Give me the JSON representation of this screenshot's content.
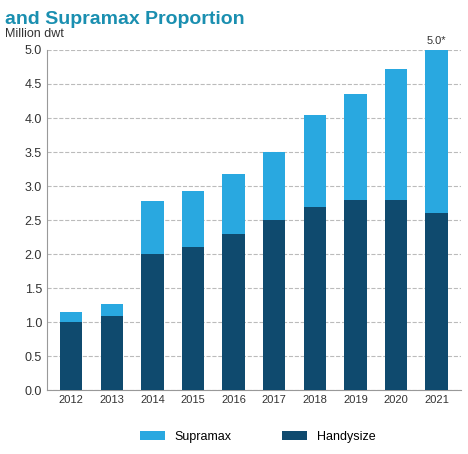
{
  "chart_data": {
    "type": "bar",
    "stacked": true,
    "title": "and Supramax Proportion",
    "y_label": "Million dwt",
    "categories": [
      "2012",
      "2013",
      "2014",
      "2015",
      "2016",
      "2017",
      "2018",
      "2019",
      "2020",
      "2021"
    ],
    "series": [
      {
        "name": "Handysize",
        "color": "#0f4a6e",
        "values": [
          1.0,
          1.1,
          2.0,
          2.1,
          2.3,
          2.5,
          2.7,
          2.8,
          2.8,
          2.6
        ]
      },
      {
        "name": "Supramax",
        "color": "#29a8e0",
        "values": [
          0.15,
          0.17,
          0.78,
          0.83,
          0.88,
          1.0,
          1.35,
          1.55,
          1.92,
          2.4
        ]
      }
    ],
    "ylim": [
      0.0,
      5.0
    ],
    "yticks": [
      0.0,
      0.5,
      1.0,
      1.5,
      2.0,
      2.5,
      3.0,
      3.5,
      4.0,
      4.5,
      5.0
    ],
    "grid": true,
    "legend": "lower center",
    "annotations": [
      {
        "text": "5.0*",
        "x": "2021",
        "y": 5.0
      }
    ]
  }
}
